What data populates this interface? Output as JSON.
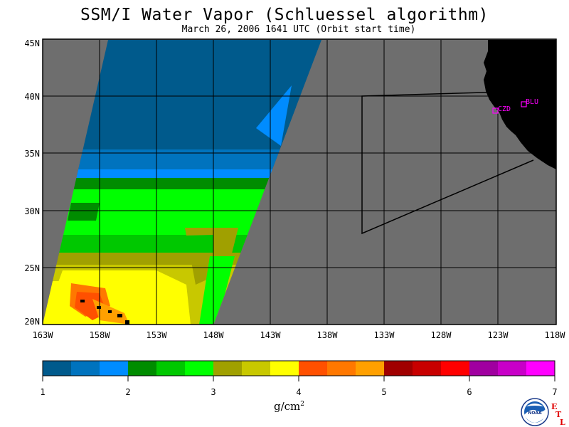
{
  "header": {
    "title": "SSM/I Water Vapor (Schluessel algorithm)",
    "subtitle": "March 26, 2006  1641 UTC  (Orbit start time)"
  },
  "map": {
    "lon_labels": [
      "163W",
      "158W",
      "153W",
      "148W",
      "143W",
      "138W",
      "133W",
      "128W",
      "123W",
      "118W"
    ],
    "lat_labels": [
      "45N",
      "40N",
      "35N",
      "30N",
      "25N",
      "20N"
    ],
    "stations": [
      {
        "name": "CZD",
        "color": "#ff00ff"
      },
      {
        "name": "BLU",
        "color": "#ff00ff"
      }
    ],
    "colors": {
      "no_data": "#6e6e6e",
      "land": "#000000",
      "frame": "#000000"
    }
  },
  "colorbar": {
    "tick_labels": [
      "1",
      "2",
      "3",
      "4",
      "5",
      "6",
      "7"
    ],
    "units": "g/cm",
    "units_sup": "2",
    "colors": [
      "#005a8c",
      "#0073be",
      "#008cff",
      "#008c00",
      "#00c800",
      "#00ff00",
      "#a0a000",
      "#c8c800",
      "#ffff00",
      "#ff5000",
      "#ff7800",
      "#ffa000",
      "#a00000",
      "#c80000",
      "#ff0000",
      "#a000a0",
      "#c800c8",
      "#ff00ff"
    ]
  },
  "footer": {
    "logo_text": "NOAA",
    "etl_letters": [
      "E",
      "T",
      "L"
    ]
  }
}
